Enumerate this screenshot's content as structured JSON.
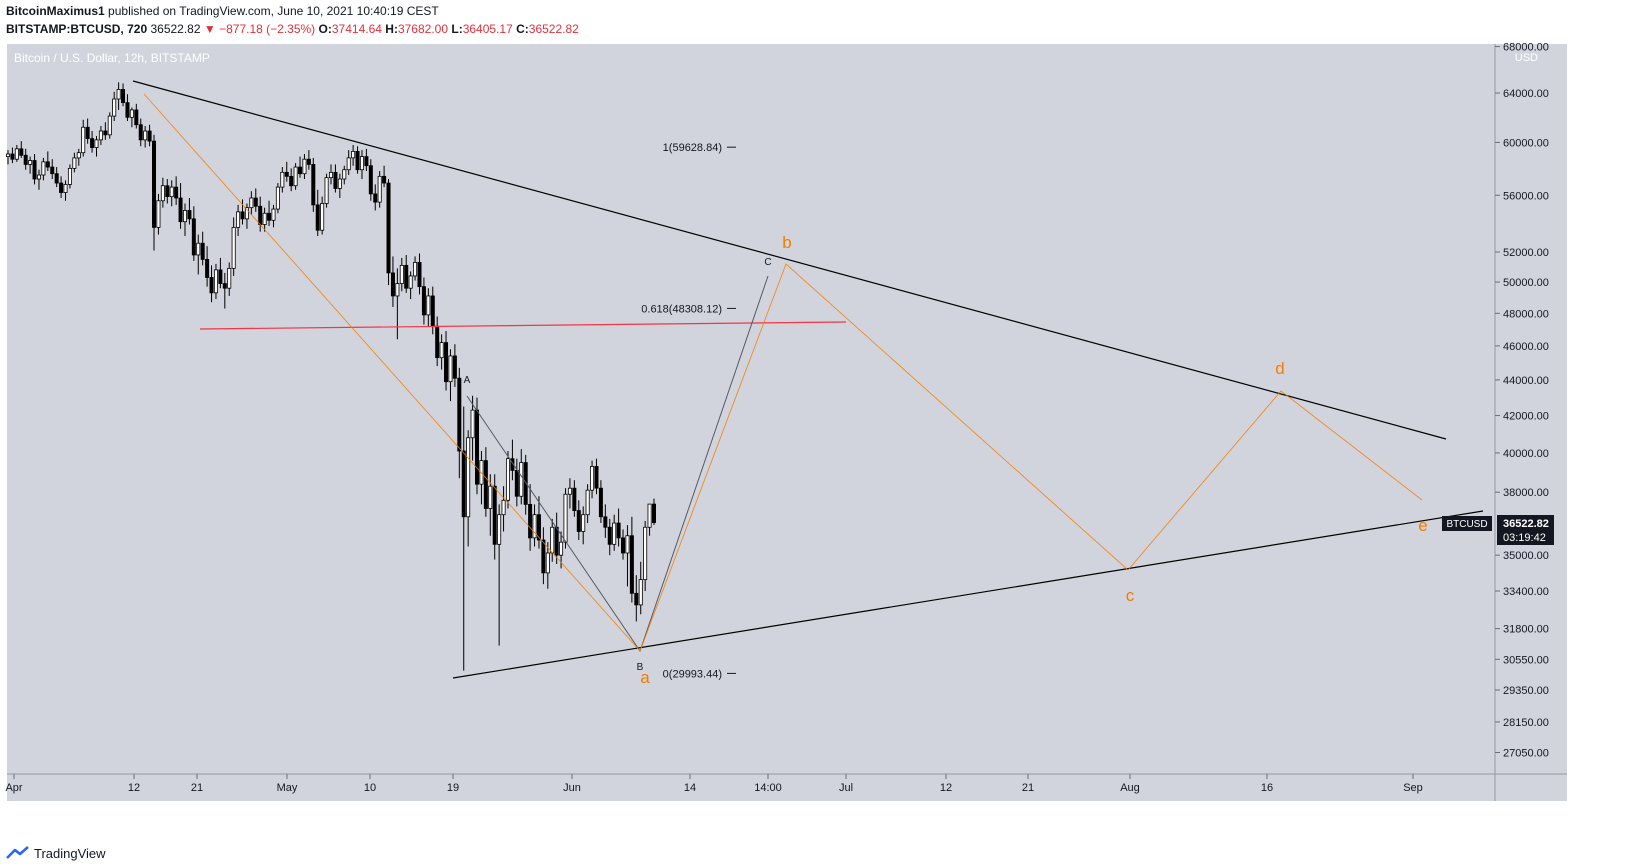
{
  "header": {
    "author": "BitcoinMaximus1",
    "published": "published on TradingView.com, June 10, 2021 10:40:19 CEST",
    "symbol": "BITSTAMP:BTCUSD, 720",
    "last": "36522.82",
    "change": "−877.18 (−2.35%)",
    "o_label": "O:",
    "o_value": "37414.64",
    "h_label": "H:",
    "h_value": "37682.00",
    "l_label": "L:",
    "l_value": "36405.17",
    "c_label": "C:",
    "c_value": "36522.82"
  },
  "chart_title": "Bitcoin / U.S. Dollar, 12h, BITSTAMP",
  "currency": "USD",
  "footer": {
    "brand": "TradingView"
  },
  "colors": {
    "background": "#d1d4dc",
    "orange": "#f57c00",
    "red": "#f23645",
    "black": "#000000",
    "text": "#131722"
  },
  "chart_data": {
    "type": "candlestick",
    "title": "Bitcoin / U.S. Dollar, 12h, BITSTAMP",
    "y_scale": "log",
    "y_axis_labels": [
      68000,
      64000,
      60000,
      56000,
      52000,
      50000,
      48000,
      46000,
      44000,
      42000,
      40000,
      38000,
      35000,
      33400,
      31800,
      30550,
      29350,
      28150,
      27050
    ],
    "x_axis_labels": [
      "Apr",
      "12",
      "21",
      "May",
      "10",
      "19",
      "Jun",
      "14",
      "14:00",
      "Jul",
      "12",
      "21",
      "Aug",
      "16",
      "Sep"
    ],
    "ohlc": [
      [
        58900,
        59400,
        58300,
        59100
      ],
      [
        59100,
        59600,
        58400,
        58700
      ],
      [
        58700,
        59800,
        58500,
        59500
      ],
      [
        59500,
        60100,
        58800,
        59000
      ],
      [
        59000,
        59500,
        57900,
        58300
      ],
      [
        58300,
        58900,
        57600,
        58600
      ],
      [
        58600,
        59100,
        56800,
        57200
      ],
      [
        57200,
        57900,
        56400,
        57500
      ],
      [
        57500,
        58800,
        57100,
        58500
      ],
      [
        58500,
        59300,
        57800,
        58100
      ],
      [
        58100,
        58700,
        57200,
        57600
      ],
      [
        57600,
        58100,
        56600,
        56900
      ],
      [
        56900,
        57400,
        55800,
        56200
      ],
      [
        56200,
        57100,
        55600,
        56800
      ],
      [
        56800,
        58300,
        56500,
        58000
      ],
      [
        58000,
        59200,
        57700,
        58800
      ],
      [
        58800,
        59500,
        58200,
        59200
      ],
      [
        59200,
        61800,
        58900,
        61200
      ],
      [
        61200,
        61900,
        59900,
        60300
      ],
      [
        60300,
        60900,
        59200,
        59600
      ],
      [
        59600,
        60500,
        58900,
        60200
      ],
      [
        60200,
        61300,
        59800,
        60900
      ],
      [
        60900,
        61600,
        60200,
        60600
      ],
      [
        60600,
        62400,
        60300,
        62100
      ],
      [
        62100,
        64100,
        61700,
        63500
      ],
      [
        63500,
        64900,
        62600,
        64300
      ],
      [
        64300,
        64800,
        62900,
        63200
      ],
      [
        63200,
        63900,
        61700,
        62000
      ],
      [
        62000,
        62800,
        61200,
        62600
      ],
      [
        62600,
        63100,
        61100,
        61400
      ],
      [
        61400,
        61900,
        59700,
        60200
      ],
      [
        60200,
        61300,
        59600,
        60900
      ],
      [
        60900,
        61400,
        59700,
        60100
      ],
      [
        60100,
        60600,
        52100,
        53700
      ],
      [
        53700,
        56100,
        53200,
        55600
      ],
      [
        55600,
        57300,
        55100,
        56700
      ],
      [
        56700,
        57200,
        55400,
        55900
      ],
      [
        55900,
        57100,
        55200,
        56600
      ],
      [
        56600,
        57400,
        55300,
        55800
      ],
      [
        55800,
        56900,
        53600,
        54100
      ],
      [
        54100,
        55400,
        53100,
        54900
      ],
      [
        54900,
        55800,
        53900,
        54300
      ],
      [
        54300,
        55200,
        51400,
        51800
      ],
      [
        51800,
        53200,
        50500,
        52600
      ],
      [
        52600,
        53400,
        51100,
        51500
      ],
      [
        51500,
        52400,
        49700,
        50300
      ],
      [
        50300,
        51100,
        48700,
        49300
      ],
      [
        49300,
        51200,
        48900,
        50800
      ],
      [
        50800,
        51600,
        49600,
        49900
      ],
      [
        49900,
        50600,
        48300,
        49600
      ],
      [
        49600,
        51300,
        49100,
        50900
      ],
      [
        50900,
        54400,
        50400,
        53700
      ],
      [
        53700,
        55300,
        53100,
        54800
      ],
      [
        54800,
        55700,
        53900,
        54300
      ],
      [
        54300,
        55400,
        53600,
        55100
      ],
      [
        55100,
        56300,
        54600,
        55800
      ],
      [
        55800,
        56500,
        54800,
        55200
      ],
      [
        55200,
        55900,
        53400,
        53900
      ],
      [
        53900,
        55100,
        53400,
        54700
      ],
      [
        54700,
        55600,
        53800,
        54200
      ],
      [
        54200,
        55300,
        53700,
        55000
      ],
      [
        55000,
        56900,
        54700,
        56600
      ],
      [
        56600,
        58100,
        56200,
        57700
      ],
      [
        57700,
        58500,
        57000,
        57400
      ],
      [
        57400,
        58000,
        56300,
        56700
      ],
      [
        56700,
        58400,
        56400,
        58100
      ],
      [
        58100,
        58900,
        57300,
        57600
      ],
      [
        57600,
        59100,
        57200,
        58700
      ],
      [
        58700,
        59400,
        57900,
        58300
      ],
      [
        58300,
        58800,
        54800,
        55300
      ],
      [
        55300,
        56400,
        53100,
        53500
      ],
      [
        53500,
        55900,
        53200,
        55400
      ],
      [
        55400,
        57600,
        55100,
        57300
      ],
      [
        57300,
        58300,
        56800,
        57700
      ],
      [
        57700,
        58300,
        56200,
        56500
      ],
      [
        56500,
        57600,
        55800,
        57200
      ],
      [
        57200,
        58200,
        56800,
        57900
      ],
      [
        57900,
        59400,
        57500,
        58800
      ],
      [
        58800,
        59800,
        58200,
        59300
      ],
      [
        59300,
        59700,
        57600,
        57900
      ],
      [
        57900,
        59400,
        57200,
        58900
      ],
      [
        58900,
        59500,
        57800,
        58200
      ],
      [
        58200,
        58700,
        55600,
        56100
      ],
      [
        56100,
        56800,
        54900,
        55500
      ],
      [
        55500,
        57800,
        55100,
        57400
      ],
      [
        57400,
        58200,
        56600,
        56900
      ],
      [
        56900,
        57200,
        49800,
        50600
      ],
      [
        50600,
        51700,
        48400,
        49100
      ],
      [
        49100,
        50900,
        46400,
        49900
      ],
      [
        49900,
        51600,
        49400,
        51100
      ],
      [
        51100,
        51800,
        49300,
        49600
      ],
      [
        49600,
        50700,
        48900,
        50400
      ],
      [
        50400,
        51700,
        50100,
        51300
      ],
      [
        51300,
        51900,
        49200,
        49700
      ],
      [
        49700,
        50300,
        47300,
        47900
      ],
      [
        47900,
        49600,
        47200,
        49100
      ],
      [
        49100,
        49700,
        46700,
        47200
      ],
      [
        47200,
        47800,
        44800,
        45300
      ],
      [
        45300,
        46700,
        44600,
        46200
      ],
      [
        46200,
        46900,
        43400,
        43900
      ],
      [
        43900,
        45800,
        42800,
        45400
      ],
      [
        45400,
        46100,
        43600,
        44100
      ],
      [
        44100,
        44700,
        38700,
        40100
      ],
      [
        40100,
        42500,
        30100,
        36800
      ],
      [
        36800,
        41200,
        35400,
        40800
      ],
      [
        40800,
        43100,
        39600,
        42300
      ],
      [
        42300,
        43000,
        37900,
        38400
      ],
      [
        38400,
        40100,
        37400,
        39600
      ],
      [
        39600,
        40300,
        36800,
        37200
      ],
      [
        37200,
        38900,
        35900,
        38300
      ],
      [
        38300,
        38900,
        34800,
        35500
      ],
      [
        35500,
        37400,
        31100,
        36900
      ],
      [
        36900,
        38300,
        36100,
        37600
      ],
      [
        37600,
        40100,
        37200,
        39700
      ],
      [
        39700,
        40700,
        38600,
        39100
      ],
      [
        39100,
        39700,
        37300,
        37800
      ],
      [
        37800,
        40200,
        37400,
        39500
      ],
      [
        39500,
        39900,
        36900,
        37400
      ],
      [
        37400,
        38400,
        35200,
        35800
      ],
      [
        35800,
        37400,
        35400,
        36900
      ],
      [
        36900,
        37800,
        35300,
        35700
      ],
      [
        35700,
        36300,
        33700,
        34200
      ],
      [
        34200,
        35600,
        33500,
        35100
      ],
      [
        35100,
        36700,
        34700,
        36300
      ],
      [
        36300,
        37000,
        34600,
        35000
      ],
      [
        35000,
        36100,
        34400,
        35600
      ],
      [
        35600,
        38200,
        35300,
        37900
      ],
      [
        37900,
        38700,
        37200,
        38200
      ],
      [
        38200,
        38600,
        36800,
        37100
      ],
      [
        37100,
        37600,
        35700,
        36100
      ],
      [
        36100,
        37300,
        35500,
        36900
      ],
      [
        36900,
        38400,
        36500,
        38100
      ],
      [
        38100,
        39600,
        37700,
        39300
      ],
      [
        39300,
        39700,
        37900,
        38200
      ],
      [
        38200,
        38600,
        36500,
        36800
      ],
      [
        36800,
        37400,
        35800,
        36300
      ],
      [
        36300,
        36700,
        35000,
        35500
      ],
      [
        35500,
        36900,
        35200,
        36500
      ],
      [
        36500,
        37200,
        35400,
        35800
      ],
      [
        35800,
        36200,
        34800,
        35100
      ],
      [
        35100,
        36400,
        33600,
        35900
      ],
      [
        35900,
        36800,
        32900,
        33300
      ],
      [
        33300,
        34100,
        32100,
        32800
      ],
      [
        32800,
        34700,
        32400,
        33900
      ],
      [
        33900,
        36600,
        33400,
        36300
      ],
      [
        36300,
        37300,
        35900,
        37414.64
      ],
      [
        37414.64,
        37682,
        36405.17,
        36522.82
      ]
    ],
    "annotations": [
      {
        "text": "1(59628.84)",
        "price": 59628.84
      },
      {
        "text": "0.618(48308.12)",
        "price": 48308.12
      },
      {
        "text": "0(29993.44)",
        "price": 29993.44
      }
    ],
    "wave_labels_black": [
      "A",
      "B",
      "C"
    ],
    "wave_labels_orange": [
      "a",
      "b",
      "c",
      "d",
      "e"
    ],
    "last_price_label": {
      "symbol": "BTCUSD",
      "price": "36522.82",
      "countdown": "03:19:42"
    }
  }
}
